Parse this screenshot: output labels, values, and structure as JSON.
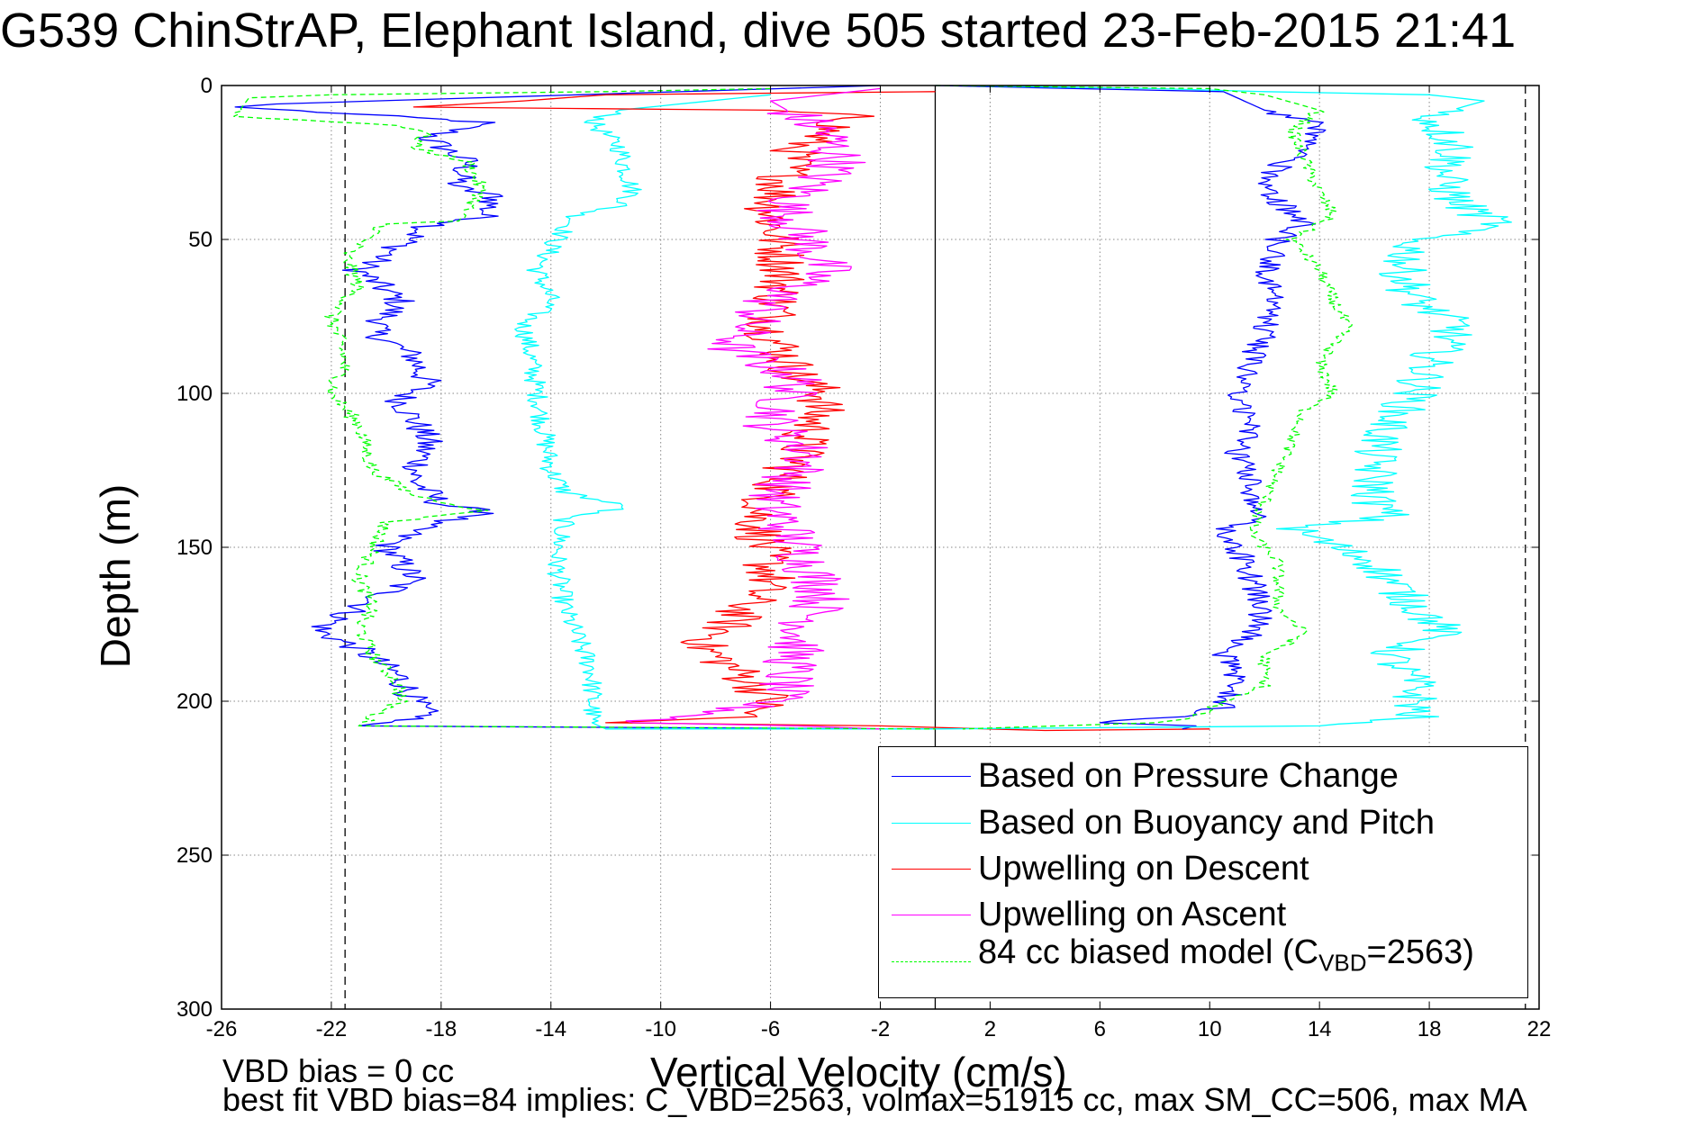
{
  "title": "G539 ChinStrAP, Elephant Island, dive 505 started 23-Feb-2015 21:41",
  "footer": {
    "line1": "VBD bias = 0 cc",
    "line2": "best fit VBD bias=84 implies: C_VBD=2563, volmax=51915 cc, max SM_CC=506, max MA"
  },
  "legend": {
    "items": [
      {
        "label": "Based on Pressure Change",
        "color": "#0000ff",
        "style": "solid"
      },
      {
        "label": "Based on Buoyancy and Pitch",
        "color": "#00ffff",
        "style": "solid"
      },
      {
        "label": "Upwelling on Descent",
        "color": "#ff0000",
        "style": "solid"
      },
      {
        "label": "Upwelling on Ascent",
        "color": "#ff00ff",
        "style": "solid"
      },
      {
        "label_pre": "84 cc biased model (C",
        "label_sub": "VBD",
        "label_post": "=2563)",
        "color": "#00ff00",
        "style": "dashed"
      }
    ],
    "placement": "bottom-right"
  },
  "chart_data": {
    "type": "line",
    "title": "G539 ChinStrAP, Elephant Island, dive 505 started 23-Feb-2015 21:41",
    "xlabel": "Vertical Velocity (cm/s)",
    "ylabel": "Depth (m)",
    "xlim": [
      -26,
      22
    ],
    "ylim": [
      300,
      0
    ],
    "y_reversed": true,
    "grid": true,
    "xticks": [
      -26,
      -22,
      -18,
      -14,
      -10,
      -6,
      -2,
      2,
      6,
      10,
      14,
      18,
      22
    ],
    "yticks": [
      0,
      50,
      100,
      150,
      200,
      250,
      300
    ],
    "reference_lines": {
      "vertical_solid": [
        0
      ],
      "vertical_dashed": [
        -21.5,
        21.5
      ]
    },
    "series": [
      {
        "name": "Based on Pressure Change",
        "color": "#0000ff",
        "dash": "solid",
        "noise": 0.6,
        "points": [
          [
            -2,
            0
          ],
          [
            -24,
            6
          ],
          [
            -25.5,
            7
          ],
          [
            -18,
            11
          ],
          [
            -16.5,
            12
          ],
          [
            -18.5,
            17
          ],
          [
            -17,
            25
          ],
          [
            -17.5,
            33
          ],
          [
            -16,
            36
          ],
          [
            -16.5,
            43
          ],
          [
            -18.5,
            46
          ],
          [
            -20,
            55
          ],
          [
            -21,
            60
          ],
          [
            -19.5,
            70
          ],
          [
            -20.5,
            80
          ],
          [
            -19,
            88
          ],
          [
            -18.5,
            97
          ],
          [
            -19.5,
            102
          ],
          [
            -18.5,
            115
          ],
          [
            -19,
            128
          ],
          [
            -18,
            136
          ],
          [
            -16,
            139
          ],
          [
            -18.5,
            142
          ],
          [
            -20,
            150
          ],
          [
            -19,
            160
          ],
          [
            -20,
            165
          ],
          [
            -21.5,
            172
          ],
          [
            -22.5,
            177
          ],
          [
            -21,
            183
          ],
          [
            -19.5,
            192
          ],
          [
            -19,
            200
          ],
          [
            -18.5,
            205
          ],
          [
            -21,
            208
          ],
          [
            -2,
            209
          ],
          [
            0,
            209
          ]
        ]
      },
      {
        "name": "Based on Buoyancy and Pitch",
        "color": "#00ffff",
        "dash": "solid",
        "noise": 0.4,
        "points": [
          [
            -6,
            3
          ],
          [
            -11.5,
            8
          ],
          [
            -12.5,
            12
          ],
          [
            -11.5,
            20
          ],
          [
            -11,
            35
          ],
          [
            -11.5,
            39
          ],
          [
            -13,
            42
          ],
          [
            -13.8,
            50
          ],
          [
            -14.5,
            60
          ],
          [
            -14,
            70
          ],
          [
            -15,
            78
          ],
          [
            -14.8,
            85
          ],
          [
            -14.5,
            100
          ],
          [
            -14.3,
            110
          ],
          [
            -14,
            125
          ],
          [
            -13.5,
            132
          ],
          [
            -11.2,
            137
          ],
          [
            -13.5,
            140
          ],
          [
            -13.8,
            155
          ],
          [
            -13.5,
            170
          ],
          [
            -13,
            180
          ],
          [
            -12.5,
            190
          ],
          [
            -12.5,
            200
          ],
          [
            -12.5,
            207
          ],
          [
            -12,
            209
          ],
          [
            0,
            209
          ]
        ]
      },
      {
        "name": "Upwelling on Descent",
        "color": "#ff0000",
        "dash": "solid",
        "noise": 1.0,
        "points": [
          [
            0,
            2
          ],
          [
            -12,
            3
          ],
          [
            -15,
            5
          ],
          [
            -19,
            7
          ],
          [
            -6,
            8
          ],
          [
            -3,
            10
          ],
          [
            -5,
            20
          ],
          [
            -6,
            40
          ],
          [
            -5.5,
            60
          ],
          [
            -6,
            80
          ],
          [
            -5,
            95
          ],
          [
            -4,
            100
          ],
          [
            -5,
            120
          ],
          [
            -6.5,
            140
          ],
          [
            -6,
            160
          ],
          [
            -7.5,
            175
          ],
          [
            -8.5,
            182
          ],
          [
            -6.5,
            195
          ],
          [
            -6,
            200
          ],
          [
            -7,
            205
          ],
          [
            -12,
            207
          ],
          [
            -2,
            208
          ],
          [
            2,
            209
          ],
          [
            4,
            209.5
          ],
          [
            10,
            209
          ]
        ]
      },
      {
        "name": "Upwelling on Ascent",
        "color": "#ff00ff",
        "dash": "solid",
        "noise": 1.1,
        "points": [
          [
            -2,
            1
          ],
          [
            -3,
            2
          ],
          [
            -6,
            5
          ],
          [
            -4,
            15
          ],
          [
            -3.5,
            25
          ],
          [
            -5.5,
            40
          ],
          [
            -4,
            60
          ],
          [
            -6,
            70
          ],
          [
            -7.5,
            85
          ],
          [
            -5,
            95
          ],
          [
            -6,
            110
          ],
          [
            -4.5,
            120
          ],
          [
            -6,
            135
          ],
          [
            -5,
            150
          ],
          [
            -4,
            165
          ],
          [
            -5,
            180
          ],
          [
            -5.5,
            195
          ],
          [
            -6,
            200
          ],
          [
            -8,
            204
          ],
          [
            -11,
            207
          ],
          [
            -5,
            208
          ],
          [
            -2,
            209
          ]
        ]
      },
      {
        "name": "84 cc biased model (C_VBD=2563)",
        "color": "#00ff00",
        "dash": "dashed",
        "noise": 0.3,
        "points": [
          [
            -6,
            1
          ],
          [
            -12,
            2
          ],
          [
            -22,
            3
          ],
          [
            -25,
            4
          ],
          [
            -25.5,
            10
          ],
          [
            -19.5,
            13
          ],
          [
            -18.5,
            15
          ],
          [
            -19,
            20
          ],
          [
            -17,
            25
          ],
          [
            -16.5,
            35
          ],
          [
            -17.5,
            44
          ],
          [
            -20,
            45
          ],
          [
            -21.5,
            55
          ],
          [
            -21,
            65
          ],
          [
            -22,
            75
          ],
          [
            -21.5,
            90
          ],
          [
            -22,
            100
          ],
          [
            -21,
            110
          ],
          [
            -20.5,
            125
          ],
          [
            -19,
            133
          ],
          [
            -16.5,
            138
          ],
          [
            -20,
            142
          ],
          [
            -21,
            160
          ],
          [
            -20.5,
            170
          ],
          [
            -21,
            175
          ],
          [
            -20.5,
            185
          ],
          [
            -19.5,
            195
          ],
          [
            -19.5,
            200
          ],
          [
            -20.5,
            205
          ],
          [
            -21,
            208
          ],
          [
            0,
            209
          ]
        ]
      },
      {
        "name": "Based on Pressure Change (ascent)",
        "color": "#0000ff",
        "dash": "solid",
        "noise": 0.5,
        "points": [
          [
            9,
            209
          ],
          [
            9.5,
            208
          ],
          [
            6,
            207
          ],
          [
            9,
            205
          ],
          [
            10.5,
            202
          ],
          [
            11,
            195
          ],
          [
            10.5,
            185
          ],
          [
            11.5,
            178
          ],
          [
            12,
            170
          ],
          [
            11.5,
            160
          ],
          [
            11,
            150
          ],
          [
            10.5,
            144
          ],
          [
            12,
            140
          ],
          [
            11.5,
            130
          ],
          [
            11,
            120
          ],
          [
            11.5,
            110
          ],
          [
            11,
            100
          ],
          [
            11.5,
            90
          ],
          [
            12,
            80
          ],
          [
            12.5,
            70
          ],
          [
            12,
            60
          ],
          [
            12.5,
            50
          ],
          [
            13.5,
            45
          ],
          [
            12.5,
            38
          ],
          [
            12,
            30
          ],
          [
            13.5,
            20
          ],
          [
            14,
            12
          ],
          [
            12,
            8
          ],
          [
            10.5,
            2
          ],
          [
            0,
            0
          ]
        ]
      },
      {
        "name": "Based on Buoyancy and Pitch (ascent)",
        "color": "#00ffff",
        "dash": "solid",
        "noise": 0.9,
        "points": [
          [
            1,
            0
          ],
          [
            8,
            1
          ],
          [
            12,
            2
          ],
          [
            18,
            3
          ],
          [
            20,
            5
          ],
          [
            18,
            10
          ],
          [
            19,
            20
          ],
          [
            18.5,
            30
          ],
          [
            19,
            38
          ],
          [
            20.5,
            45
          ],
          [
            17.5,
            50
          ],
          [
            17,
            60
          ],
          [
            17.5,
            70
          ],
          [
            19,
            78
          ],
          [
            18,
            90
          ],
          [
            17.5,
            100
          ],
          [
            16.5,
            110
          ],
          [
            16,
            120
          ],
          [
            16,
            135
          ],
          [
            16.5,
            140
          ],
          [
            13,
            144
          ],
          [
            16,
            155
          ],
          [
            17,
            165
          ],
          [
            18.5,
            177
          ],
          [
            16.5,
            185
          ],
          [
            17.5,
            195
          ],
          [
            17.5,
            205
          ],
          [
            14,
            208
          ],
          [
            0,
            209
          ]
        ]
      },
      {
        "name": "84 cc biased model (ascent)",
        "color": "#00ff00",
        "dash": "dashed",
        "noise": 0.25,
        "points": [
          [
            0,
            0
          ],
          [
            10,
            1
          ],
          [
            12,
            3
          ],
          [
            14,
            8
          ],
          [
            13,
            15
          ],
          [
            13.5,
            25
          ],
          [
            14,
            35
          ],
          [
            14.5,
            42
          ],
          [
            13,
            50
          ],
          [
            14,
            60
          ],
          [
            14.5,
            70
          ],
          [
            15,
            78
          ],
          [
            14,
            90
          ],
          [
            14.5,
            100
          ],
          [
            13.5,
            105
          ],
          [
            13,
            115
          ],
          [
            12.5,
            125
          ],
          [
            12,
            135
          ],
          [
            11.5,
            145
          ],
          [
            12.5,
            155
          ],
          [
            12.5,
            170
          ],
          [
            13.5,
            178
          ],
          [
            12,
            185
          ],
          [
            12,
            195
          ],
          [
            10.5,
            200
          ],
          [
            9.5,
            205
          ],
          [
            8,
            207
          ],
          [
            1,
            209
          ]
        ]
      }
    ]
  }
}
